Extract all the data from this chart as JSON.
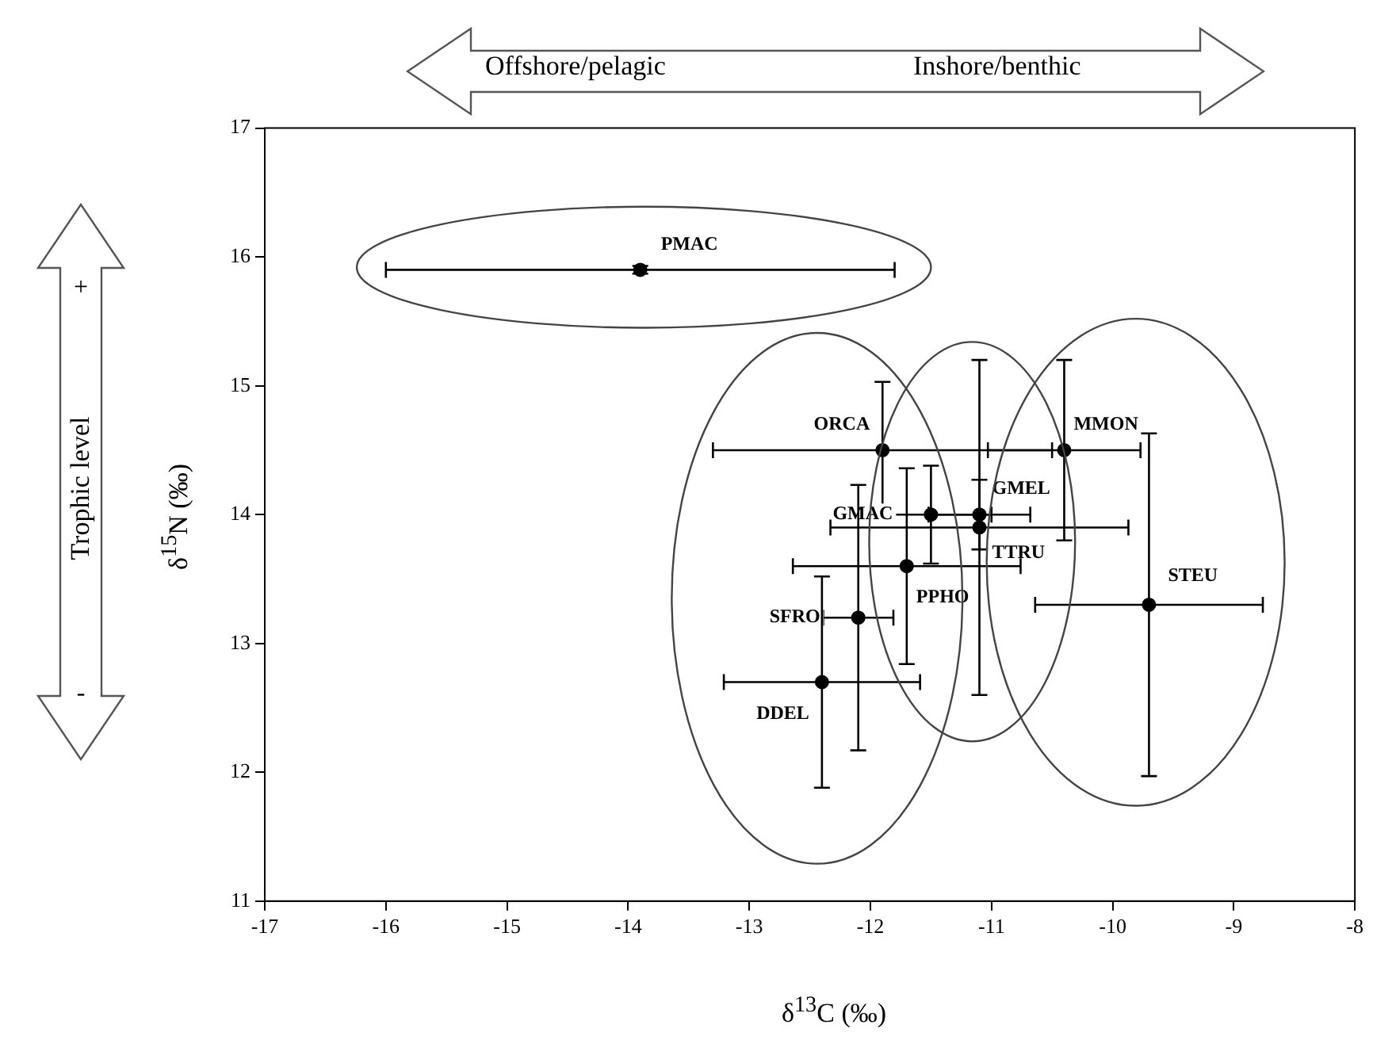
{
  "chart_data": {
    "type": "scatter",
    "xlabel": "δ$^{13}$C (‰)",
    "ylabel": "δ$^{15}$N (‰)",
    "xlim": [
      -17,
      -8
    ],
    "xticks": [
      -17,
      -16,
      -15,
      -14,
      -13,
      -12,
      -11,
      -10,
      -9,
      -8
    ],
    "ylim": [
      11,
      17
    ],
    "yticks": [
      11,
      12,
      13,
      14,
      15,
      16,
      17
    ],
    "grid": false,
    "legend": false,
    "marker": "circle",
    "annotations": [
      "Offshore/pelagic",
      "Inshore/benthic",
      "Trophic level",
      "+",
      "-"
    ],
    "series": [
      {
        "name": "PMAC",
        "color": "#000000",
        "x": [
          -13.9
        ],
        "values": [
          15.9
        ],
        "errors": [
          0.03
        ],
        "xerrors": [
          2.1
        ]
      },
      {
        "name": "ORCA",
        "color": "#000000",
        "x": [
          -11.9
        ],
        "values": [
          14.5
        ],
        "errors": [
          0.53
        ],
        "xerrors": [
          1.4
        ]
      },
      {
        "name": "MMON",
        "color": "#000000",
        "x": [
          -10.4
        ],
        "values": [
          14.5
        ],
        "errors": [
          0.7
        ],
        "xerrors": [
          0.63
        ]
      },
      {
        "name": "GMAC",
        "color": "#000000",
        "x": [
          -11.5
        ],
        "values": [
          14.0
        ],
        "errors": [
          0.38
        ],
        "xerrors": [
          0.5
        ]
      },
      {
        "name": "GMEL",
        "color": "#000000",
        "x": [
          -11.1
        ],
        "values": [
          14.0
        ],
        "errors": [
          0.27
        ],
        "xerrors": [
          0.42
        ]
      },
      {
        "name": "TTRU",
        "color": "#000000",
        "x": [
          -11.1
        ],
        "values": [
          13.9
        ],
        "errors": [
          1.3
        ],
        "xerrors": [
          1.23
        ]
      },
      {
        "name": "PPHO",
        "color": "#000000",
        "x": [
          -11.7
        ],
        "values": [
          13.6
        ],
        "errors": [
          0.76
        ],
        "xerrors": [
          0.94
        ]
      },
      {
        "name": "SFRO",
        "color": "#000000",
        "x": [
          -12.1
        ],
        "values": [
          13.2
        ],
        "errors": [
          1.03
        ],
        "xerrors": [
          0.29
        ]
      },
      {
        "name": "DDEL",
        "color": "#000000",
        "x": [
          -12.4
        ],
        "values": [
          12.7
        ],
        "errors": [
          0.82
        ],
        "xerrors": [
          0.81
        ]
      },
      {
        "name": "STEU",
        "color": "#000000",
        "x": [
          -9.7
        ],
        "values": [
          13.3
        ],
        "errors": [
          1.33
        ],
        "xerrors": [
          0.94
        ]
      }
    ]
  }
}
